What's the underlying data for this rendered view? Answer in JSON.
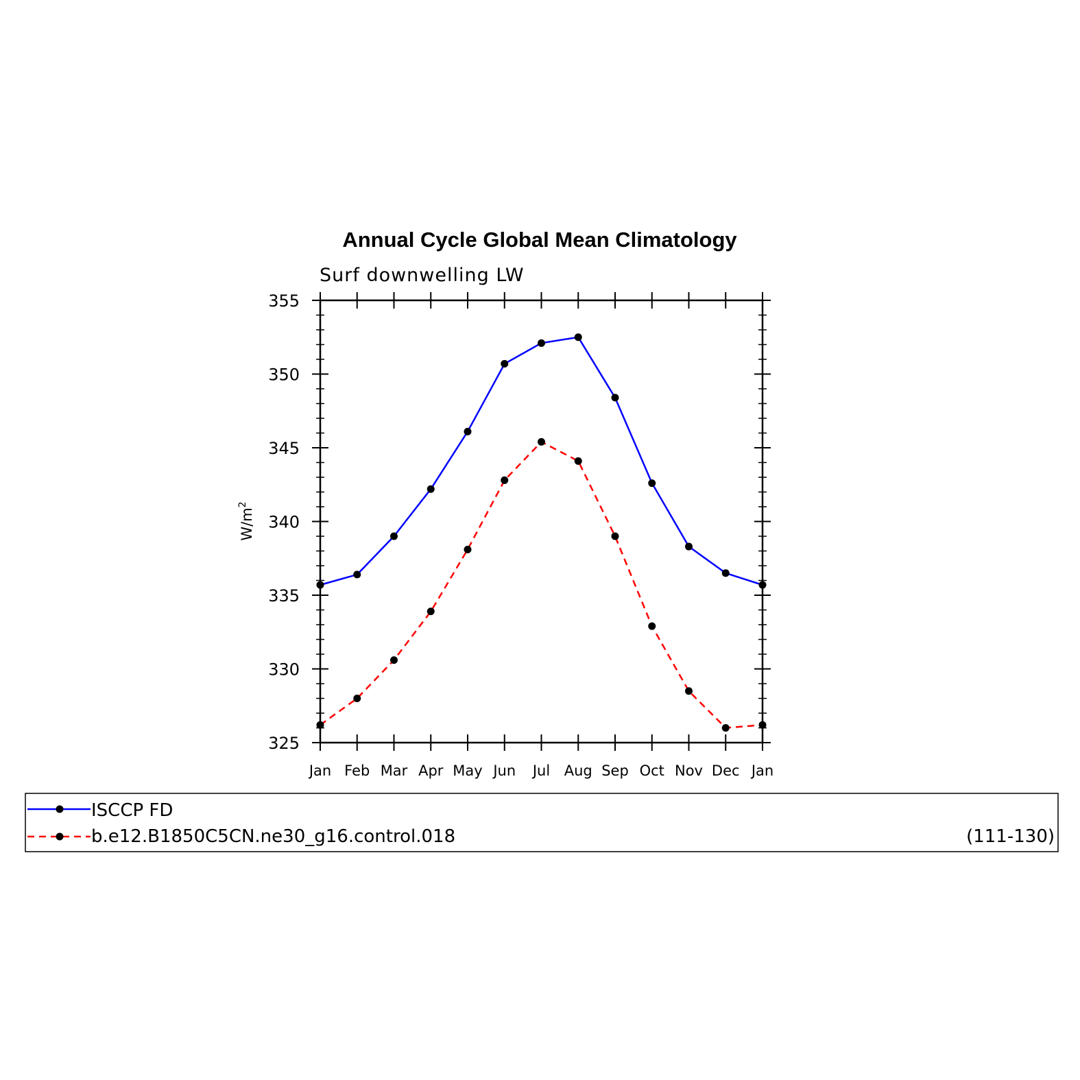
{
  "chart_data": {
    "type": "line",
    "title": "Annual Cycle Global Mean Climatology",
    "subtitle": "Surf downwelling LW",
    "ylabel": "W/m",
    "ylabel_sup": "2",
    "ylim": [
      325,
      355
    ],
    "yticks": [
      "325",
      "330",
      "335",
      "340",
      "345",
      "350",
      "355"
    ],
    "categories": [
      "Jan",
      "Feb",
      "Mar",
      "Apr",
      "May",
      "Jun",
      "Jul",
      "Aug",
      "Sep",
      "Oct",
      "Nov",
      "Dec",
      "Jan"
    ],
    "series": [
      {
        "name": "ISCCP FD",
        "color": "#0000ff",
        "dash": "solid",
        "values": [
          335.7,
          336.4,
          339.0,
          342.2,
          346.1,
          350.7,
          352.1,
          352.5,
          348.4,
          342.6,
          338.3,
          336.5,
          335.7
        ]
      },
      {
        "name": "b.e12.B1850C5CN.ne30_g16.control.018",
        "color": "#ff0000",
        "dash": "dashed",
        "values": [
          326.2,
          328.0,
          330.6,
          333.9,
          338.1,
          342.8,
          345.4,
          344.1,
          339.0,
          332.9,
          328.5,
          326.0,
          326.2
        ]
      }
    ],
    "legend": {
      "placement": "bottom",
      "note": "(111-130)"
    }
  }
}
